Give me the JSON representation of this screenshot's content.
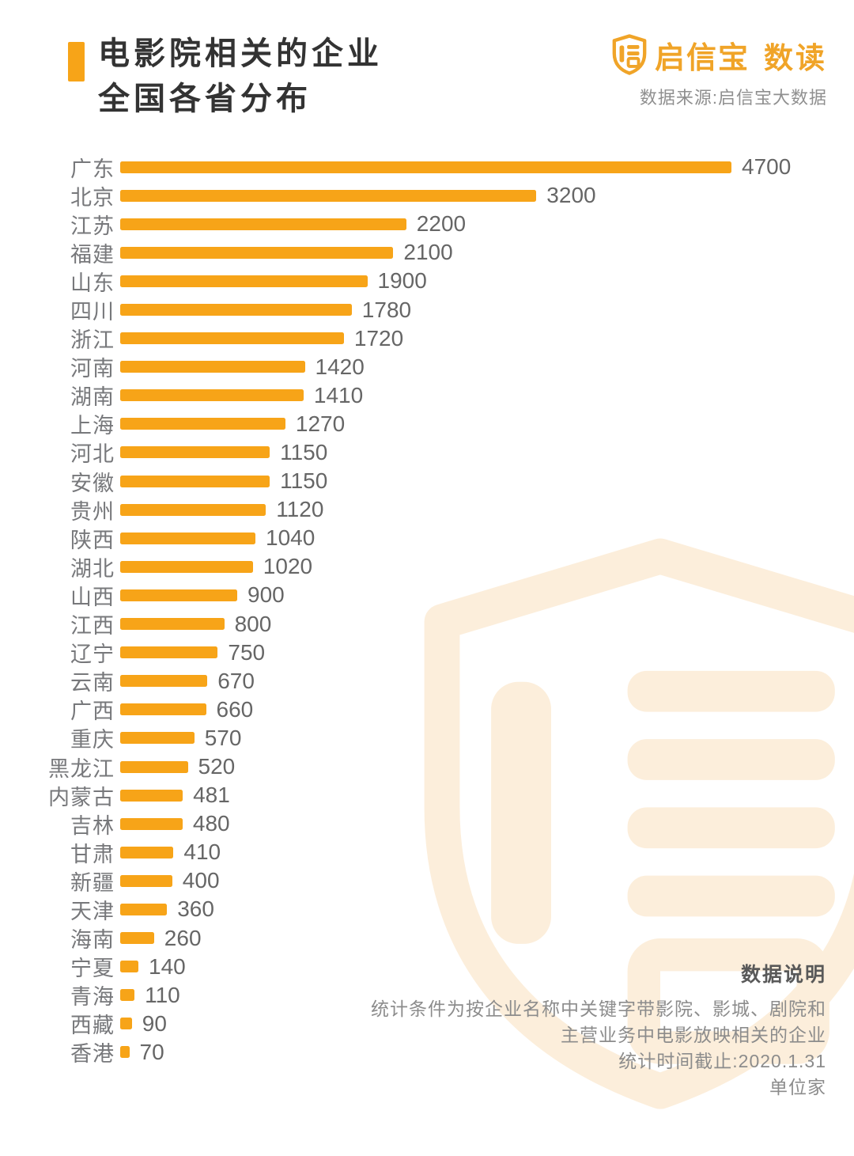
{
  "header": {
    "title_line1": "电影院相关的企业",
    "title_line2": "全国各省分布",
    "brand": {
      "name": "启信宝",
      "suffix": "数读",
      "source": "数据来源:启信宝大数据"
    }
  },
  "chart_data": {
    "type": "bar",
    "orientation": "horizontal",
    "title": "电影院相关的企业全国各省分布",
    "unit": "家",
    "categories": [
      "广东",
      "北京",
      "江苏",
      "福建",
      "山东",
      "四川",
      "浙江",
      "河南",
      "湖南",
      "上海",
      "河北",
      "安徽",
      "贵州",
      "陕西",
      "湖北",
      "山西",
      "江西",
      "辽宁",
      "云南",
      "广西",
      "重庆",
      "黑龙江",
      "内蒙古",
      "吉林",
      "甘肃",
      "新疆",
      "天津",
      "海南",
      "宁夏",
      "青海",
      "西藏",
      "香港"
    ],
    "values": [
      4700,
      3200,
      2200,
      2100,
      1900,
      1780,
      1720,
      1420,
      1410,
      1270,
      1150,
      1150,
      1120,
      1040,
      1020,
      900,
      800,
      750,
      670,
      660,
      570,
      520,
      481,
      480,
      410,
      400,
      360,
      260,
      140,
      110,
      90,
      70
    ],
    "xlim": [
      0,
      4700
    ],
    "grid": false,
    "legend": "none",
    "value_labels": "right-of-bar"
  },
  "notes": {
    "heading": "数据说明",
    "lines": [
      "统计条件为按企业名称中关键字带影院、影城、剧院和",
      "主营业务中电影放映相关的企业",
      "统计时间截止:2020.1.31",
      "单位家"
    ]
  },
  "colors": {
    "accent": "#F7A418",
    "bar": "#F7A418",
    "brand_orange": "#F0A428",
    "watermark": "#FCEEDB",
    "title_text": "#333333",
    "category_text": "#77787B",
    "value_text": "#666666"
  }
}
